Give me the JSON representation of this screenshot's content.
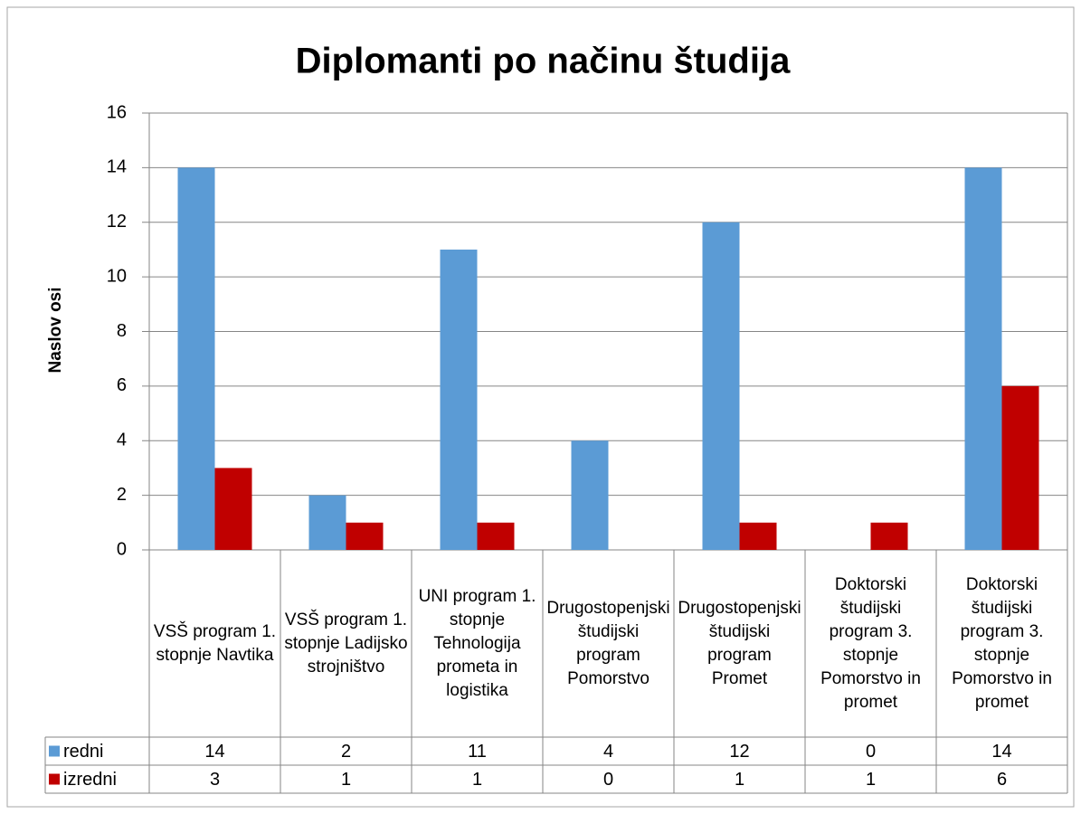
{
  "chart_data": {
    "type": "bar",
    "title": "Diplomanti po načinu študija",
    "y_label": "Naslov osi",
    "categories": [
      "VSŠ program 1. stopnje Navtika",
      "VSŠ program 1. stopnje Ladijsko strojništvo",
      "UNI program 1. stopnje Tehnologija prometa in logistika",
      "Drugostopenjski študijski program Pomorstvo",
      "Drugostopenjski študijski program Promet",
      "Doktorski študijski program 3. stopnje Pomorstvo in promet",
      "Doktorski študijski program 3. stopnje Pomorstvo in promet"
    ],
    "series": [
      {
        "name": "redni",
        "color": "#5b9bd5",
        "values": [
          14,
          2,
          11,
          4,
          12,
          0,
          14
        ]
      },
      {
        "name": "izredni",
        "color": "#c00000",
        "values": [
          3,
          1,
          1,
          0,
          1,
          1,
          6
        ]
      }
    ],
    "ylim": [
      0,
      16
    ],
    "yticks": [
      0,
      2,
      4,
      6,
      8,
      10,
      12,
      14,
      16
    ],
    "grid": true,
    "data_table": true
  }
}
